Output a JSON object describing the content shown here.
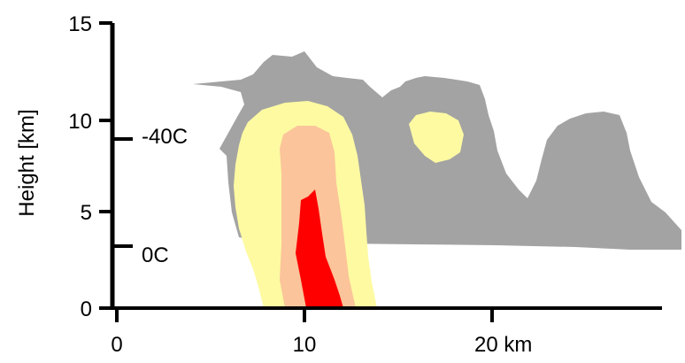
{
  "diagram": {
    "y_axis": {
      "title": "Height [km]",
      "ticks": [
        "0",
        "5",
        "10",
        "15"
      ]
    },
    "x_axis": {
      "ticks": [
        "0",
        "10",
        "20 km"
      ]
    },
    "annotations": [
      "-40C",
      "0C"
    ],
    "colors": {
      "cloud_anvil": "#a3a3a3",
      "echo_weak": "#fdfaa2",
      "echo_moderate": "#fbc49a",
      "echo_strong": "#ff0000",
      "axis": "#000000"
    }
  }
}
